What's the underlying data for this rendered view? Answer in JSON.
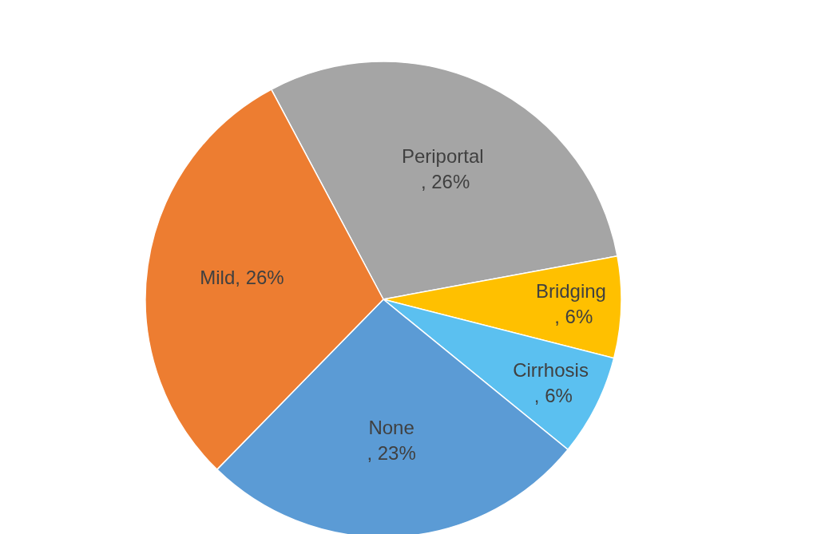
{
  "chart_data": {
    "type": "pie",
    "categories": [
      "Periportal ",
      "Bridging ",
      "Cirrhosis ",
      "None",
      "Mild"
    ],
    "values": [
      26,
      6,
      6,
      23,
      26
    ],
    "value_labels": [
      ", 26%",
      ", 6%",
      ", 6%",
      ", 23%",
      "26%"
    ],
    "colors": [
      "#a5a5a5",
      "#ffc000",
      "#5bc0f0",
      "#5b9bd5",
      "#ed7d31"
    ]
  }
}
